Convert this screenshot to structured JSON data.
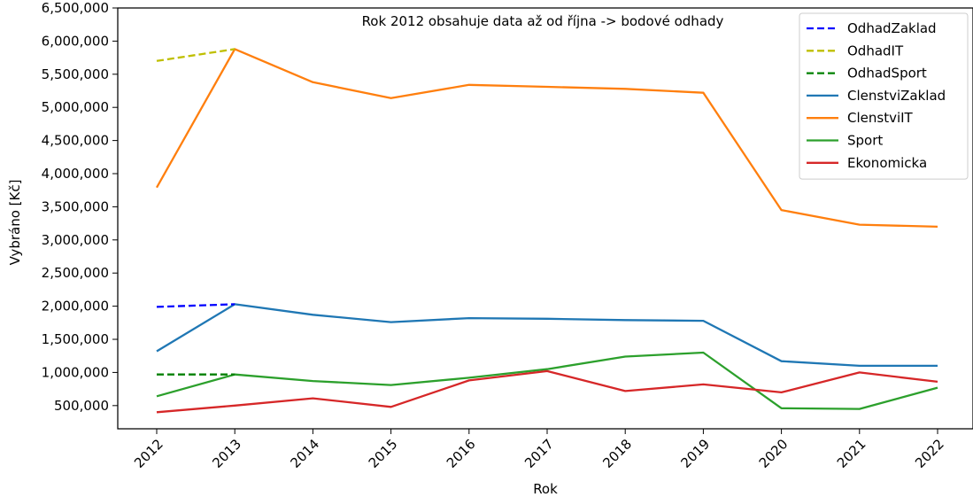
{
  "chart_data": {
    "type": "line",
    "title": "",
    "annotation": "Rok 2012 obsahuje data až od října -> bodové odhady",
    "xlabel": "Rok",
    "ylabel": "Vybráno [Kč]",
    "ylim": [
      150000,
      6500000
    ],
    "yticks": [
      500000,
      1000000,
      1500000,
      2000000,
      2500000,
      3000000,
      3500000,
      4000000,
      4500000,
      5000000,
      5500000,
      6000000,
      6500000
    ],
    "ytick_labels": [
      "500,000",
      "1,000,000",
      "1,500,000",
      "2,000,000",
      "2,500,000",
      "3,000,000",
      "3,500,000",
      "4,000,000",
      "4,500,000",
      "5,000,000",
      "5,500,000",
      "6,000,000",
      "6,500,000"
    ],
    "x": [
      "2012",
      "2013",
      "2014",
      "2015",
      "2016",
      "2017",
      "2018",
      "2019",
      "2020",
      "2021",
      "2022"
    ],
    "grid": false,
    "legend_position": "top-right",
    "series": [
      {
        "name": "OdhadZaklad",
        "style": "dashed",
        "color": "#0000ff",
        "x": [
          "2012",
          "2013"
        ],
        "values": [
          1990000,
          2030000
        ]
      },
      {
        "name": "OdhadIT",
        "style": "dashed",
        "color": "#bfbf00",
        "x": [
          "2012",
          "2013"
        ],
        "values": [
          5700000,
          5880000
        ]
      },
      {
        "name": "OdhadSport",
        "style": "dashed",
        "color": "#008000",
        "x": [
          "2012",
          "2013"
        ],
        "values": [
          970000,
          970000
        ]
      },
      {
        "name": "ClenstviZaklad",
        "style": "solid",
        "color": "#1f77b4",
        "x": [
          "2012",
          "2013",
          "2014",
          "2015",
          "2016",
          "2017",
          "2018",
          "2019",
          "2020",
          "2021",
          "2022"
        ],
        "values": [
          1320000,
          2030000,
          1870000,
          1760000,
          1820000,
          1810000,
          1790000,
          1780000,
          1170000,
          1100000,
          1100000
        ]
      },
      {
        "name": "ClenstviIT",
        "style": "solid",
        "color": "#ff7f0e",
        "x": [
          "2012",
          "2013",
          "2014",
          "2015",
          "2016",
          "2017",
          "2018",
          "2019",
          "2020",
          "2021",
          "2022"
        ],
        "values": [
          3790000,
          5880000,
          5380000,
          5140000,
          5340000,
          5310000,
          5280000,
          5220000,
          3450000,
          3230000,
          3200000
        ]
      },
      {
        "name": "Sport",
        "style": "solid",
        "color": "#2ca02c",
        "x": [
          "2012",
          "2013",
          "2014",
          "2015",
          "2016",
          "2017",
          "2018",
          "2019",
          "2020",
          "2021",
          "2022"
        ],
        "values": [
          640000,
          970000,
          870000,
          810000,
          920000,
          1050000,
          1240000,
          1300000,
          460000,
          450000,
          770000
        ]
      },
      {
        "name": "Ekonomicka",
        "style": "solid",
        "color": "#d62728",
        "x": [
          "2012",
          "2013",
          "2014",
          "2015",
          "2016",
          "2017",
          "2018",
          "2019",
          "2020",
          "2021",
          "2022"
        ],
        "values": [
          400000,
          500000,
          610000,
          480000,
          880000,
          1020000,
          720000,
          820000,
          700000,
          1000000,
          860000
        ]
      }
    ]
  }
}
